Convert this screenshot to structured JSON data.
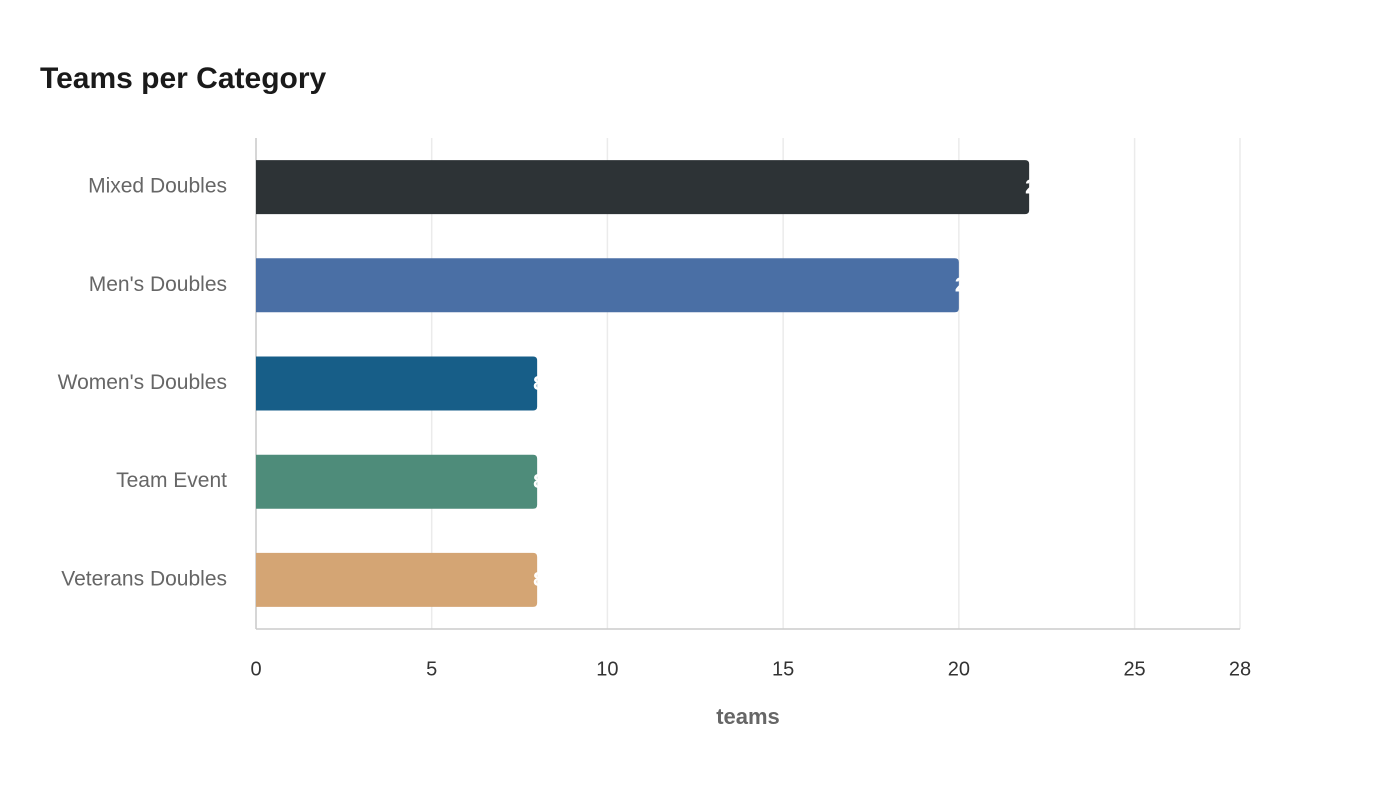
{
  "chart_data": {
    "type": "hbar",
    "title": "Teams per Category",
    "categories": [
      "Mixed Doubles",
      "Men's Doubles",
      "Women's Doubles",
      "Team Event",
      "Veterans Doubles"
    ],
    "values": [
      22,
      20,
      8,
      8,
      8
    ],
    "colors": [
      "#2d3336",
      "#4a6fa5",
      "#175e88",
      "#4e8c7a",
      "#d4a574"
    ],
    "xlabel": "teams",
    "xlim": [
      0,
      28
    ],
    "xticks": [
      0,
      5,
      10,
      15,
      20,
      25,
      28
    ],
    "grid": true
  }
}
